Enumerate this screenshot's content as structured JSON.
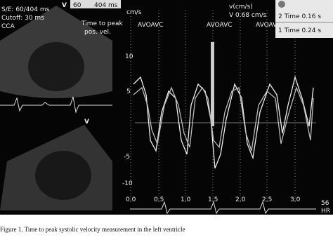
{
  "echo_panel": {
    "header_lines": [
      "S/E: 60/404 ms",
      "Cutoff: 30 ms",
      "CCA"
    ],
    "scale_top": [
      "V",
      "60",
      "404 ms"
    ],
    "annotation": [
      "Time to peak",
      "pos. vel."
    ],
    "apex_label": "V"
  },
  "velocity_plot": {
    "y_unit": "cm/s",
    "readout_unit": "v(cm/s)",
    "readout": "V 0.68 cm/s",
    "event_labels": [
      "AVOAVC",
      "AVOAVC",
      "AVOAVC"
    ],
    "y_ticks": [
      "10",
      "5",
      "-5",
      "-10"
    ],
    "x_ticks": [
      "0.0",
      "0.5",
      "1.0",
      "1.5",
      "2.0",
      "2.5",
      "3.0"
    ],
    "heart_rate": [
      "56",
      "HR"
    ]
  },
  "time_box": {
    "rows": [
      "2 Time 0.16 s",
      "1 Time 0.24 s"
    ]
  },
  "caption": "Figure 1. Time to peak systolic velocity measurement in the left ventricle"
}
